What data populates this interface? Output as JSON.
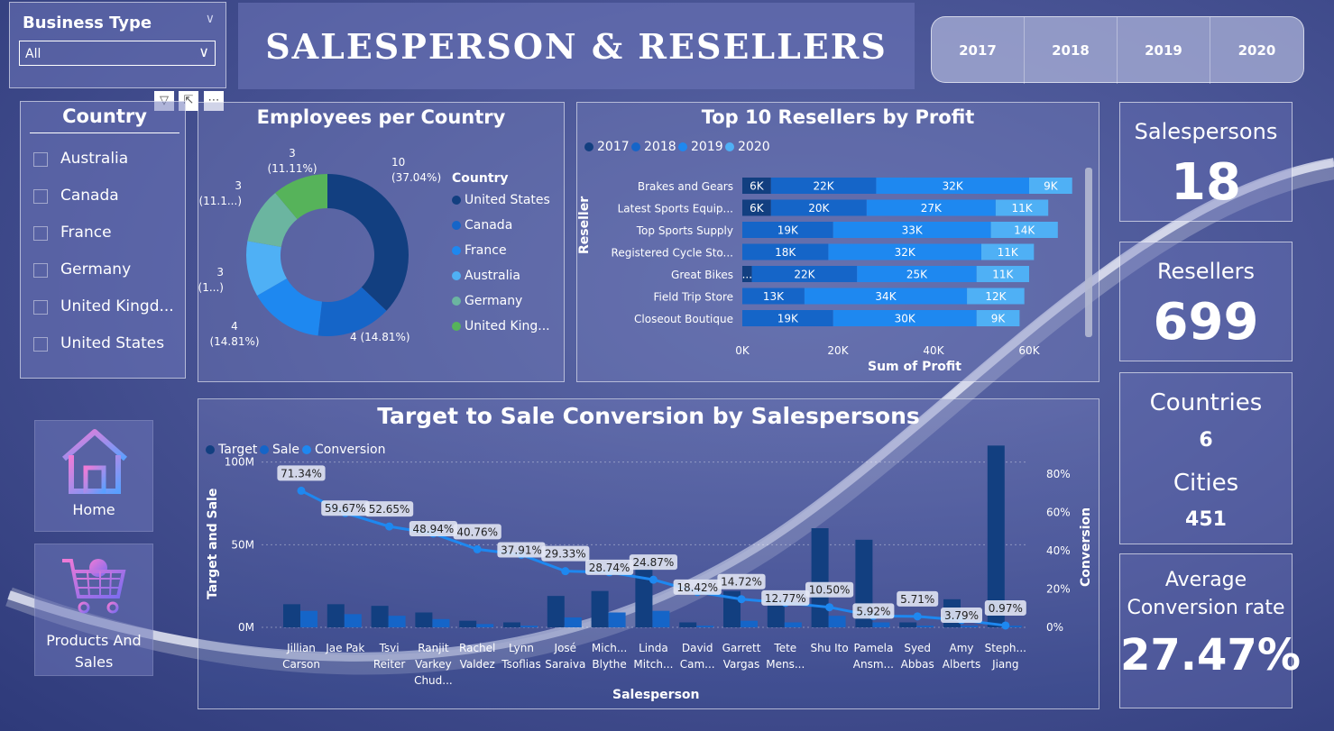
{
  "slicer_business": {
    "label": "Business Type",
    "value": "All"
  },
  "title": "SALESPERSON & RESELLERS",
  "years": [
    "2017",
    "2018",
    "2019",
    "2020"
  ],
  "country_slicer": {
    "title": "Country",
    "items": [
      "Australia",
      "Canada",
      "France",
      "Germany",
      "United Kingd...",
      "United States"
    ]
  },
  "toolbar_icons": [
    "filter-icon",
    "focus-mode-icon",
    "more-options-icon"
  ],
  "nav": {
    "home": "Home",
    "products": "Products And Sales"
  },
  "kpis": {
    "salespersons_label": "Salespersons",
    "salespersons_value": "18",
    "resellers_label": "Resellers",
    "resellers_value": "699",
    "countries_label": "Countries",
    "countries_value": "6",
    "cities_label": "Cities",
    "cities_value": "451",
    "conv_label_1": "Average",
    "conv_label_2": "Conversion rate",
    "conv_value": "27.47%"
  },
  "chart_data": [
    {
      "type": "pie",
      "title": "Employees per Country",
      "legend_title": "Country",
      "legend_placement": "right",
      "categories": [
        "United States",
        "Canada",
        "France",
        "Australia",
        "Germany",
        "United King..."
      ],
      "values": [
        10,
        4,
        4,
        3,
        3,
        3
      ],
      "labels": [
        "10\n(37.04%)",
        "4 (14.81%)",
        "4\n(14.81%)",
        "3\n(1...)",
        "3\n(11.1...)",
        "3\n(11.11%)"
      ],
      "colors": [
        "#123f80",
        "#1565c8",
        "#1e88f0",
        "#4fb0f5",
        "#6bb5a0",
        "#56b35a"
      ]
    },
    {
      "type": "bar",
      "orientation": "horizontal-stacked",
      "title": "Top 10 Resellers by Profit",
      "xlabel": "Sum of Profit",
      "ylabel": "Reseller",
      "xlim": [
        0,
        60000
      ],
      "xticks": [
        "0K",
        "20K",
        "40K",
        "60K"
      ],
      "legend_placement": "top-left",
      "categories": [
        "Brakes and Gears",
        "Latest Sports Equip...",
        "Top Sports Supply",
        "Registered Cycle Sto...",
        "Great Bikes",
        "Field Trip Store",
        "Closeout Boutique"
      ],
      "series": [
        {
          "name": "2017",
          "color": "#123f80",
          "values": [
            6,
            6,
            0,
            0,
            2,
            0,
            0
          ],
          "labels": [
            "6K",
            "6K",
            "",
            "",
            "...",
            "",
            ""
          ]
        },
        {
          "name": "2018",
          "color": "#1565c8",
          "values": [
            22,
            20,
            19,
            18,
            22,
            13,
            19
          ],
          "labels": [
            "22K",
            "20K",
            "19K",
            "18K",
            "22K",
            "13K",
            "19K"
          ]
        },
        {
          "name": "2019",
          "color": "#1e88f0",
          "values": [
            32,
            27,
            33,
            32,
            25,
            34,
            30
          ],
          "labels": [
            "32K",
            "27K",
            "33K",
            "32K",
            "25K",
            "34K",
            "30K"
          ]
        },
        {
          "name": "2020",
          "color": "#4fb0f5",
          "values": [
            9,
            11,
            14,
            11,
            11,
            12,
            9
          ],
          "labels": [
            "9K",
            "11K",
            "14K",
            "11K",
            "11K",
            "12K",
            "9K"
          ]
        }
      ]
    },
    {
      "type": "bar",
      "subtype": "combo-bar-line",
      "title": "Target to Sale Conversion by Salespersons",
      "xlabel": "Salesperson",
      "ylabel": "Target and Sale",
      "y2label": "Conversion",
      "ylim": [
        0,
        120
      ],
      "yticks": [
        "0M",
        "50M",
        "100M"
      ],
      "y2lim": [
        0,
        80
      ],
      "y2ticks": [
        "0%",
        "20%",
        "40%",
        "60%",
        "80%"
      ],
      "legend_placement": "top-left",
      "categories": [
        "Jillian\nCarson",
        "Jae Pak",
        "Tsvi\nReiter",
        "Ranjit\nVarkey\nChud...",
        "Rachel\nValdez",
        "Lynn\nTsoflias",
        "José\nSaraiva",
        "Mich...\nBlythe",
        "Linda\nMitch...",
        "David\nCam...",
        "Garrett\nVargas",
        "Tete\nMens...",
        "Shu Ito",
        "Pamela\nAnsm...",
        "Syed\nAbbas",
        "Amy\nAlberts",
        "Steph...\nJiang"
      ],
      "series": [
        {
          "name": "Target",
          "color": "#123f80",
          "values": [
            14,
            14,
            13,
            9,
            4,
            3,
            19,
            22,
            40,
            3,
            22,
            17,
            60,
            53,
            3,
            17,
            110
          ]
        },
        {
          "name": "Sale",
          "color": "#1565c8",
          "values": [
            10,
            8,
            7,
            5,
            2,
            1,
            6,
            9,
            10,
            1,
            4,
            3,
            7,
            3,
            1,
            1,
            1
          ]
        },
        {
          "name": "Conversion",
          "color": "#1e88f0",
          "values": [
            71.34,
            59.67,
            52.65,
            48.94,
            40.76,
            37.91,
            29.33,
            28.74,
            24.87,
            18.42,
            14.72,
            12.77,
            10.5,
            5.92,
            5.71,
            3.79,
            0.97
          ],
          "labels": [
            "71.34%",
            "59.67%",
            "52.65%",
            "48.94%",
            "40.76%",
            "37.91%",
            "29.33%",
            "28.74%",
            "24.87%",
            "18.42%",
            "14.72%",
            "12.77%",
            "10.50%",
            "5.92%",
            "5.71%",
            "3.79%",
            "0.97%"
          ]
        }
      ]
    }
  ]
}
